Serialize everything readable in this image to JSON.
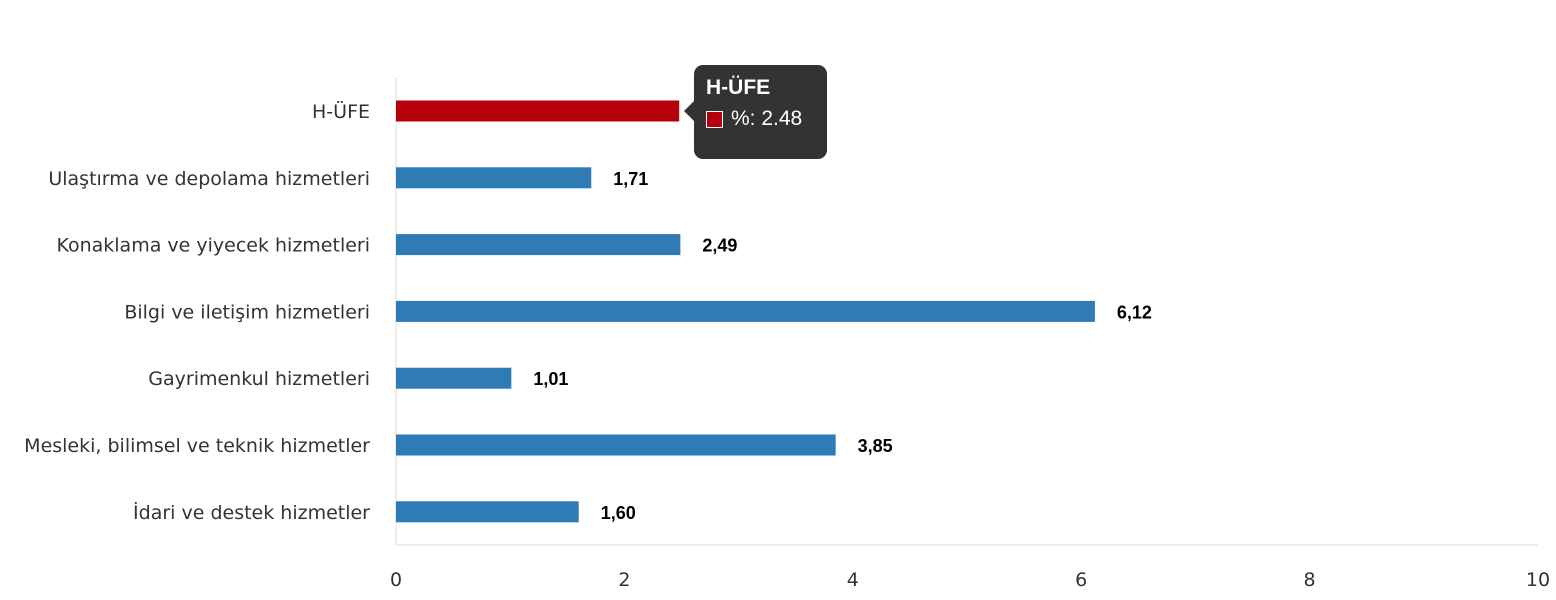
{
  "chart_data": {
    "type": "bar",
    "orientation": "horizontal",
    "categories": [
      "H-ÜFE",
      "Ulaştırma ve depolama hizmetleri",
      "Konaklama ve yiyecek hizmetleri",
      "Bilgi ve iletişim hizmetleri",
      "Gayrimenkul hizmetleri",
      "Mesleki, bilimsel ve teknik hizmetler",
      "İdari ve destek hizmetler"
    ],
    "values": [
      2.48,
      1.71,
      2.49,
      6.12,
      1.01,
      3.85,
      1.6
    ],
    "data_labels": [
      "2,48",
      "1,71",
      "2,49",
      "6,12",
      "1,01",
      "3,85",
      "1,60"
    ],
    "bar_colors": [
      "#b5000c",
      "#2e7bb6",
      "#2e7bb6",
      "#2e7bb6",
      "#2e7bb6",
      "#2e7bb6",
      "#2e7bb6"
    ],
    "xlim": [
      0,
      10
    ],
    "xticks": [
      0,
      2,
      4,
      6,
      8,
      10
    ],
    "grid": false,
    "legend": "none"
  },
  "tooltip": {
    "title": "H-ÜFE",
    "series_text": "%: 2.48",
    "swatch_color": "#b5000c"
  }
}
